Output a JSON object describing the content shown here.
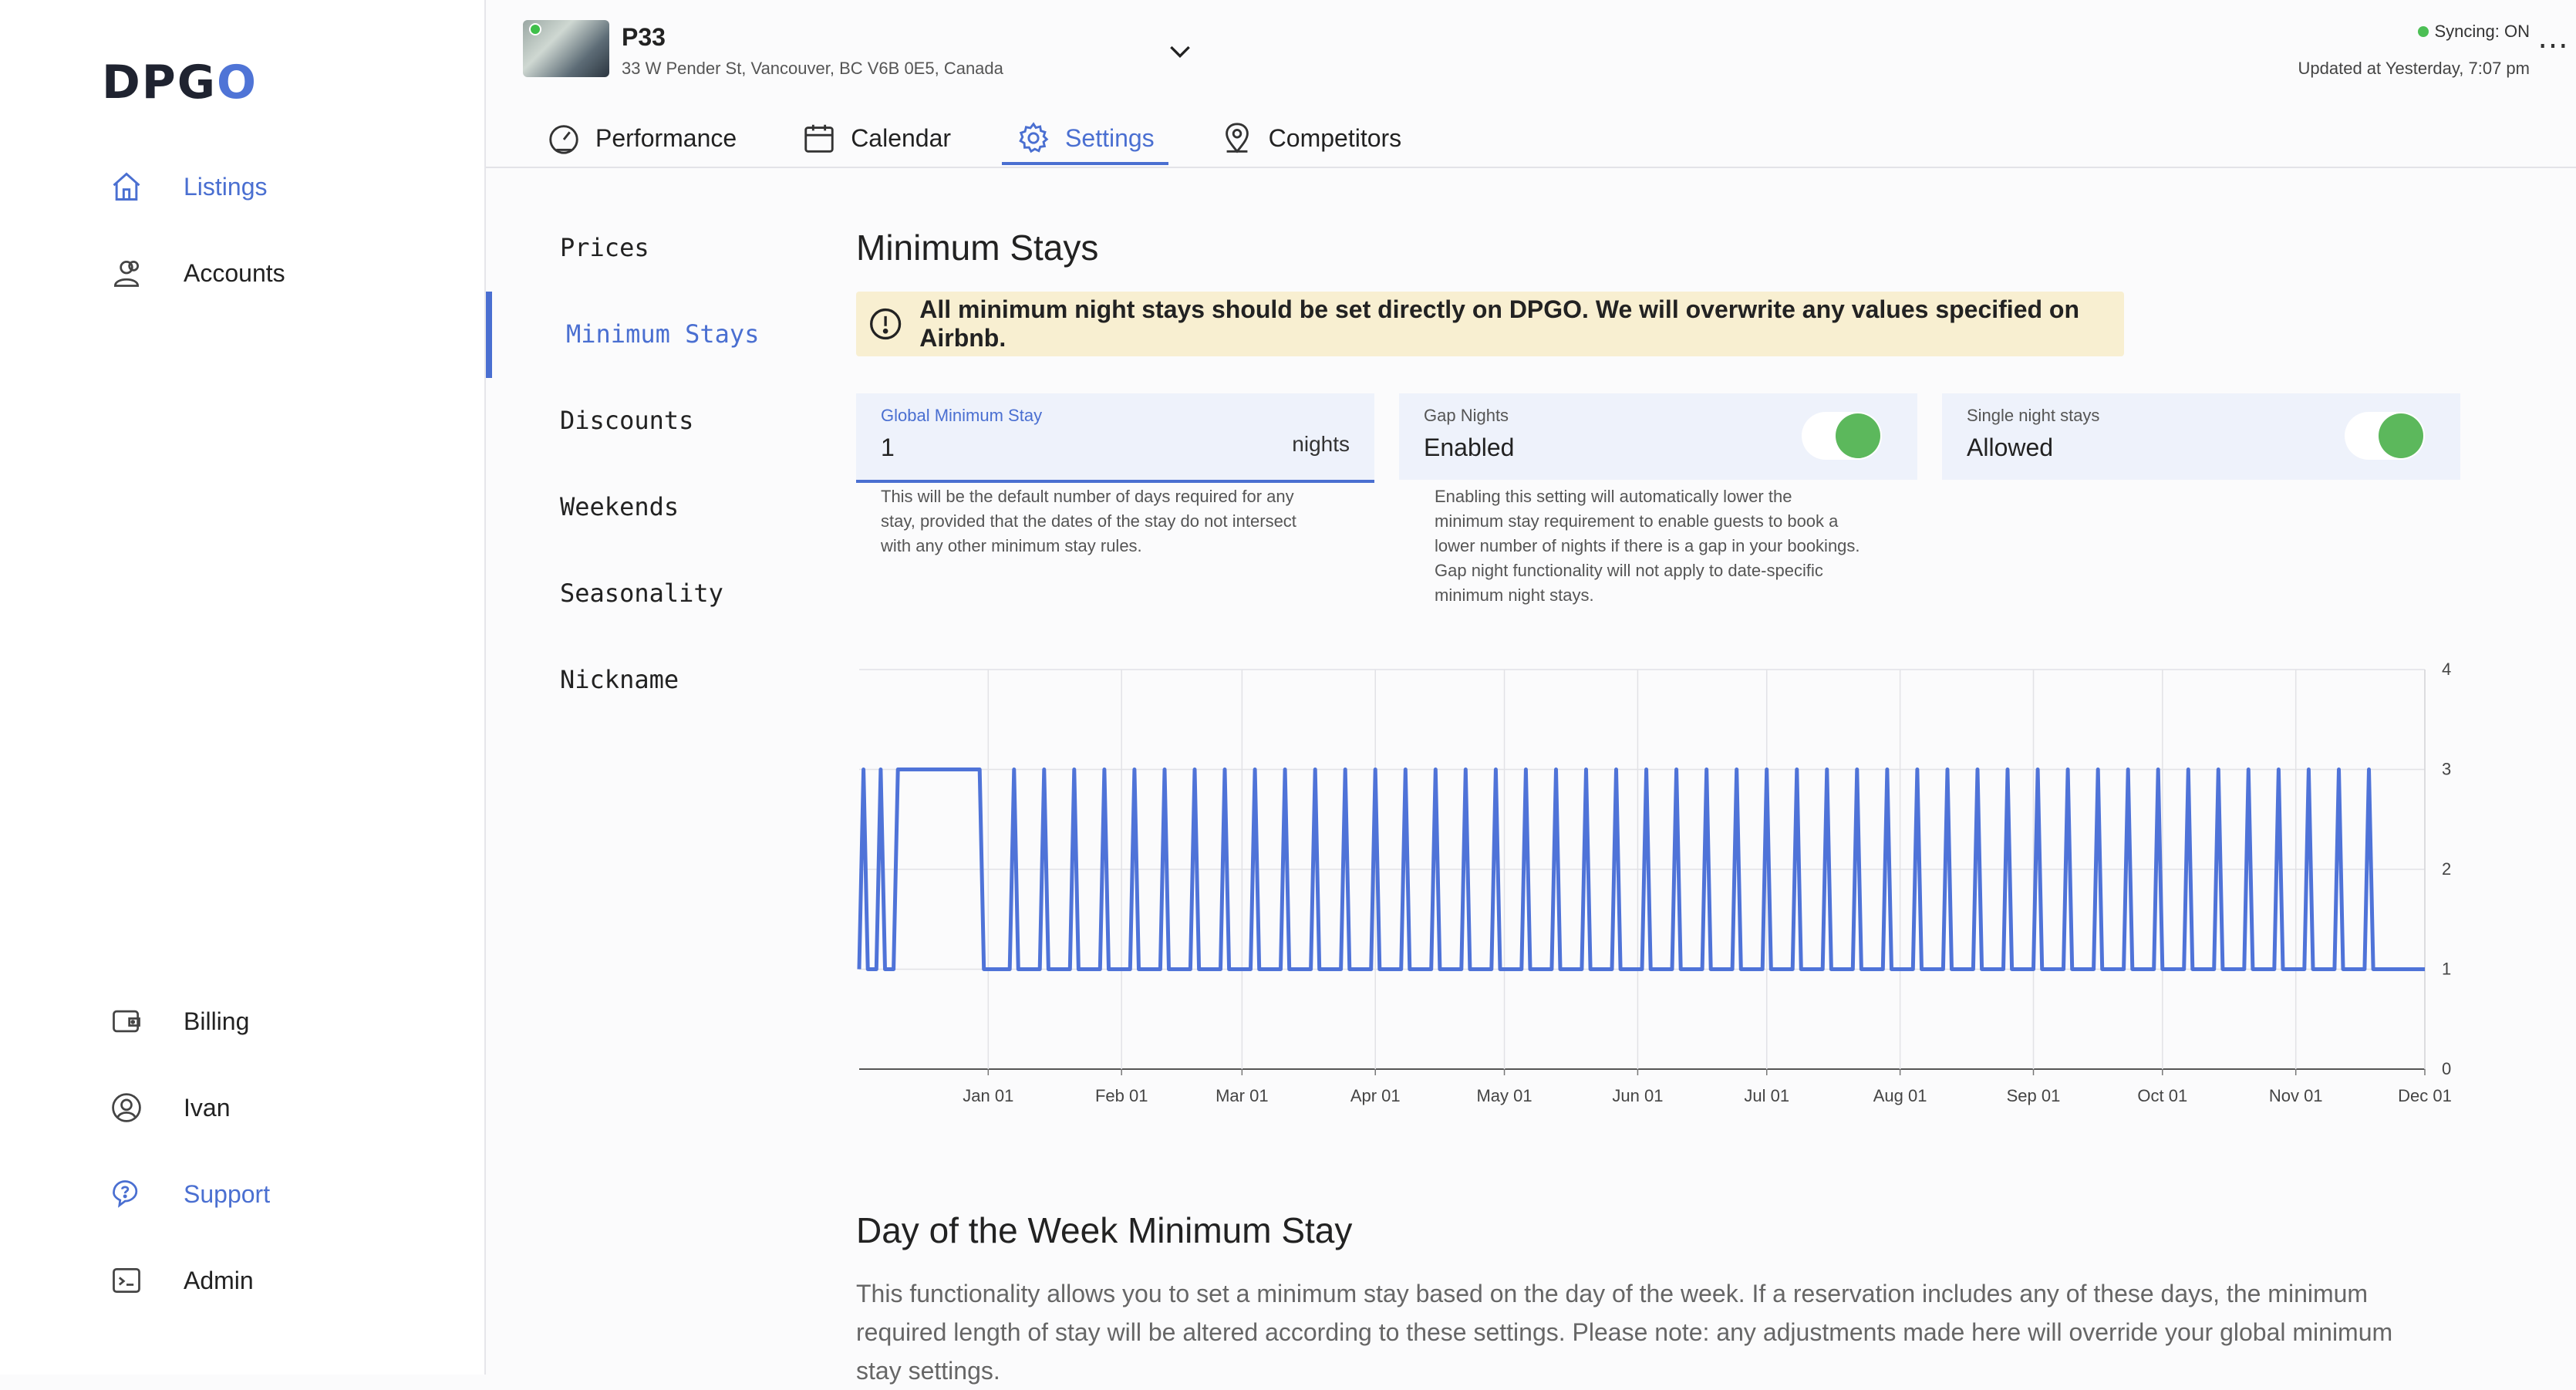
{
  "brand": {
    "logo": "DPGO"
  },
  "sidebar": {
    "top_items": [
      {
        "label": "Listings",
        "icon": "home-icon"
      },
      {
        "label": "Accounts",
        "icon": "users-icon"
      }
    ],
    "bottom_items": [
      {
        "label": "Billing",
        "icon": "wallet-icon"
      },
      {
        "label": "Ivan",
        "icon": "user-circle-icon"
      },
      {
        "label": "Support",
        "icon": "chat-question-icon"
      },
      {
        "label": "Admin",
        "icon": "terminal-icon"
      }
    ]
  },
  "listing": {
    "name": "P33",
    "address": "33 W Pender St, Vancouver, BC V6B 0E5, Canada"
  },
  "status": {
    "sync": "Syncing: ON",
    "updated": "Updated at Yesterday, 7:07 pm"
  },
  "tabs": [
    {
      "label": "Performance",
      "icon": "gauge-icon"
    },
    {
      "label": "Calendar",
      "icon": "calendar-icon"
    },
    {
      "label": "Settings",
      "icon": "gear-icon",
      "active": true
    },
    {
      "label": "Competitors",
      "icon": "location-pin-icon"
    }
  ],
  "subnav": [
    "Prices",
    "Minimum Stays",
    "Discounts",
    "Weekends",
    "Seasonality",
    "Nickname"
  ],
  "min_stays": {
    "title": "Minimum Stays",
    "banner": "All minimum night stays should be set directly on DPGO. We will overwrite any values specified on Airbnb.",
    "global": {
      "label": "Global Minimum Stay",
      "value": "1",
      "unit": "nights",
      "help": [
        "This will be the default number of days required for any",
        "stay, provided that the dates of the stay do not intersect",
        "with any other minimum stay rules."
      ]
    },
    "gap": {
      "label": "Gap Nights",
      "value": "Enabled",
      "on": true,
      "help": [
        "Enabling this setting will automatically lower the",
        "minimum stay requirement to enable guests to book a",
        "lower number of nights if there is a gap in your bookings.",
        "Gap night functionality will not apply to date-specific",
        "minimum night stays."
      ]
    },
    "single": {
      "label": "Single night stays",
      "value": "Allowed",
      "on": true
    }
  },
  "chart_data": {
    "type": "line",
    "title": "",
    "xlabel": "",
    "ylabel": "",
    "x_ticks": [
      "Jan 01",
      "Feb 01",
      "Mar 01",
      "Apr 01",
      "May 01",
      "Jun 01",
      "Jul 01",
      "Aug 01",
      "Sep 01",
      "Oct 01",
      "Nov 01",
      "Dec 01"
    ],
    "y_ticks": [
      "0",
      "1",
      "2",
      "3",
      "4"
    ],
    "ylim": [
      0,
      4
    ],
    "xlim": [
      "Dec 02",
      "Dec 01"
    ],
    "grid": true,
    "y_axis_position": "right",
    "series_color": "#4f73d8",
    "pattern": "weekly minimum stay alternating between 1 night (weekdays) and 3 nights (weekends); a sustained 3-night span in mid-December",
    "points": [
      [
        "Dec 02",
        1
      ],
      [
        "Dec 03",
        3
      ],
      [
        "Dec 04",
        1
      ],
      [
        "Dec 06",
        1
      ],
      [
        "Dec 07",
        3
      ],
      [
        "Dec 08",
        1
      ],
      [
        "Dec 10",
        1
      ],
      [
        "Dec 11",
        3
      ],
      [
        "Dec 30",
        3
      ],
      [
        "Dec 31",
        1
      ],
      [
        "Jan 06",
        1
      ],
      [
        "Jan 07",
        3
      ],
      [
        "Jan 08",
        1
      ],
      [
        "Jan 13",
        1
      ],
      [
        "Jan 14",
        3
      ],
      [
        "Jan 15",
        1
      ],
      [
        "Nov 30",
        1
      ],
      [
        "Dec 01",
        1
      ]
    ],
    "weekly_peaks_start": "Jan 07",
    "weekly_peaks_end": "Nov 24",
    "peak_value": 3,
    "base_value": 1
  },
  "dow": {
    "title": "Day of the Week Minimum Stay",
    "text_lines": [
      "This functionality allows you to set a minimum stay based on the day of the week. If a reservation includes any of these days, the minimum",
      "required length of stay will be altered according to these settings. Please note: any adjustments made here will override your global minimum",
      "stay settings."
    ]
  }
}
